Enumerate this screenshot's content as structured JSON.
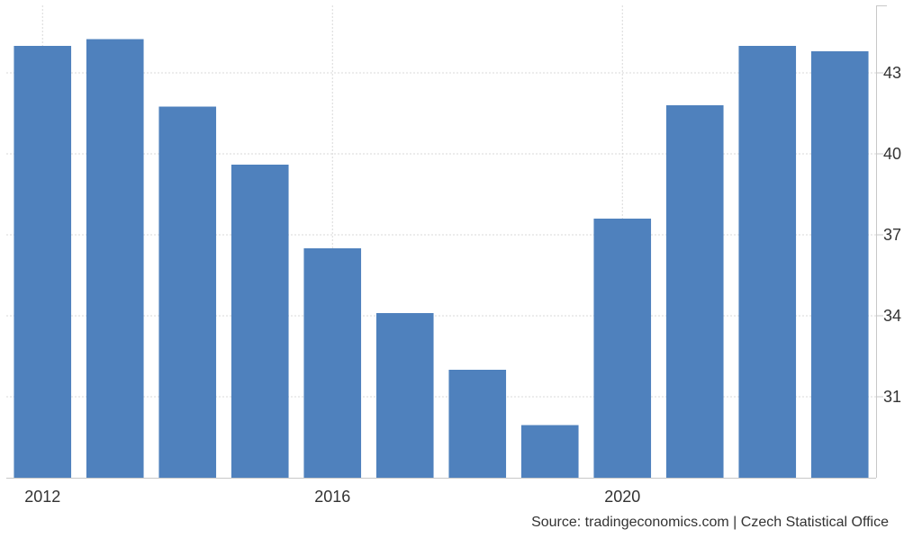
{
  "chart_data": {
    "type": "bar",
    "categories": [
      "2012",
      "2013",
      "2014",
      "2015",
      "2016",
      "2017",
      "2018",
      "2019",
      "2020",
      "2021",
      "2022",
      "2023"
    ],
    "values": [
      44.0,
      44.25,
      41.75,
      39.6,
      36.5,
      34.1,
      32.0,
      29.95,
      37.6,
      41.8,
      44.0,
      43.8
    ],
    "title": "",
    "xlabel": "",
    "ylabel": "",
    "ylim": [
      28.0,
      45.5
    ],
    "yticks": [
      31,
      34,
      37,
      40,
      43
    ],
    "xtick_labels": [
      "2012",
      "2016",
      "2020"
    ],
    "y_axis_side": "right",
    "grid": true,
    "bar_color": "#4f81bd",
    "grid_color": "#d9d9d9",
    "source": "Source: tradingeconomics.com | Czech Statistical Office"
  }
}
